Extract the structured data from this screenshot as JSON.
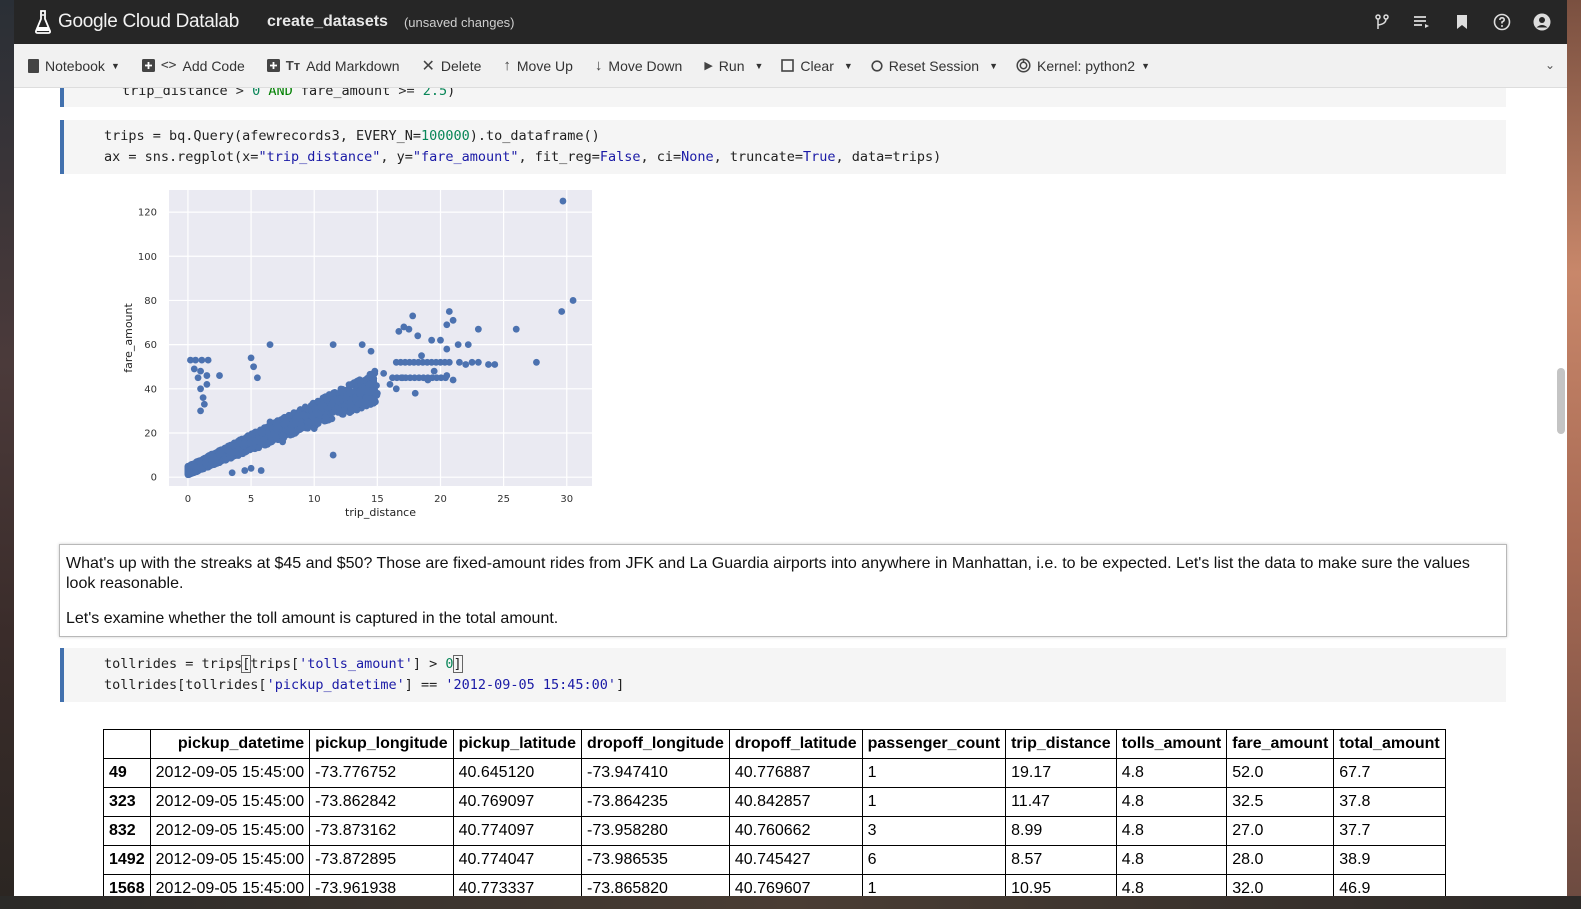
{
  "app": {
    "logo_text": "Google Cloud Datalab",
    "notebook_title": "create_datasets",
    "status": "(unsaved changes)"
  },
  "header_icons": [
    "branch-icon",
    "list-icon",
    "bookmark-icon",
    "help-icon",
    "account-icon"
  ],
  "toolbar": {
    "notebook": "Notebook",
    "add_code": "Add Code",
    "add_markdown": "Add Markdown",
    "delete": "Delete",
    "move_up": "Move Up",
    "move_down": "Move Down",
    "run": "Run",
    "clear": "Clear",
    "reset_session": "Reset Session",
    "kernel": "Kernel: python2"
  },
  "cells": {
    "top_partial_line": "trip_distance > 0 AND fare_amount >= 2.5)",
    "code1_line1": "trips = bq.Query(afewrecords3, EVERY_N=100000).to_dataframe()",
    "code1_line2": "ax = sns.regplot(x=\"trip_distance\", y=\"fare_amount\", fit_reg=False, ci=None, truncate=True, data=trips)",
    "markdown_p1": "What's up with the streaks at $45 and $50? Those are fixed-amount rides from JFK and La Guardia airports into anywhere in Manhattan, i.e. to be expected. Let's list the data to make sure the values look reasonable.",
    "markdown_p2": "Let's examine whether the toll amount is captured in the total amount.",
    "code2_line1": "tollrides = trips[trips['tolls_amount'] > 0]",
    "code2_line2": "tollrides[tollrides['pickup_datetime'] == '2012-09-05 15:45:00']"
  },
  "chart_data": {
    "type": "scatter",
    "xlabel": "trip_distance",
    "ylabel": "fare_amount",
    "xlim": [
      -1.5,
      32
    ],
    "ylim": [
      -4,
      130
    ],
    "xticks": [
      0,
      5,
      10,
      15,
      20,
      25,
      30
    ],
    "yticks": [
      0,
      20,
      40,
      60,
      80,
      100,
      120
    ],
    "grid": true,
    "color": "#4c72b0",
    "background": "#eaeaf2",
    "points": [
      [
        29.7,
        125
      ],
      [
        30.5,
        80
      ],
      [
        29.6,
        75
      ],
      [
        26.0,
        67
      ],
      [
        27.6,
        52
      ],
      [
        23.0,
        67
      ],
      [
        20.5,
        69
      ],
      [
        20.7,
        75
      ],
      [
        21.0,
        71
      ],
      [
        17.8,
        73
      ],
      [
        17.5,
        67
      ],
      [
        17.1,
        68
      ],
      [
        16.7,
        66
      ],
      [
        18.2,
        64
      ],
      [
        19.3,
        62
      ],
      [
        20.0,
        62
      ],
      [
        20.5,
        58
      ],
      [
        21.4,
        60
      ],
      [
        22.2,
        60
      ],
      [
        13.8,
        60
      ],
      [
        14.5,
        57
      ],
      [
        11.5,
        60
      ],
      [
        6.5,
        60
      ],
      [
        5.0,
        54
      ],
      [
        5.2,
        50
      ],
      [
        5.5,
        45
      ],
      [
        0.2,
        53
      ],
      [
        0.6,
        53
      ],
      [
        1.1,
        53
      ],
      [
        1.6,
        53
      ],
      [
        0.5,
        49
      ],
      [
        1.0,
        48
      ],
      [
        1.5,
        46
      ],
      [
        2.5,
        46
      ],
      [
        0.8,
        45
      ],
      [
        1.0,
        40
      ],
      [
        1.2,
        36
      ],
      [
        1.3,
        33
      ],
      [
        1.0,
        30
      ],
      [
        1.5,
        42
      ],
      [
        11.5,
        10
      ],
      [
        4.5,
        3
      ],
      [
        5.0,
        4
      ],
      [
        5.8,
        3
      ],
      [
        3.5,
        2
      ],
      [
        9.5,
        25
      ],
      [
        10.0,
        22
      ],
      [
        7.5,
        16
      ],
      [
        6.0,
        17
      ],
      [
        8.5,
        24
      ],
      [
        12.0,
        30
      ],
      [
        13.5,
        33
      ],
      [
        15.0,
        38
      ],
      [
        16.0,
        42
      ],
      [
        14.0,
        40
      ],
      [
        15.5,
        47
      ],
      [
        13.0,
        42
      ],
      [
        12.5,
        36
      ],
      [
        10.5,
        32
      ],
      [
        11.0,
        35
      ],
      [
        16.5,
        40
      ],
      [
        18.0,
        38
      ],
      [
        17.0,
        45
      ],
      [
        19.0,
        44
      ],
      [
        20.5,
        46
      ],
      [
        21.0,
        44
      ],
      [
        22.0,
        51
      ],
      [
        23.0,
        52
      ],
      [
        23.8,
        51
      ],
      [
        24.3,
        51
      ],
      [
        18.5,
        55
      ],
      [
        19.5,
        48
      ],
      [
        21.5,
        52
      ],
      [
        22.5,
        52
      ],
      [
        14.8,
        48
      ],
      [
        9.0,
        28
      ],
      [
        8.0,
        28
      ],
      [
        7.0,
        22
      ],
      [
        6.5,
        25
      ],
      [
        12.8,
        38
      ]
    ]
  },
  "table": {
    "columns": [
      "",
      "pickup_datetime",
      "pickup_longitude",
      "pickup_latitude",
      "dropoff_longitude",
      "dropoff_latitude",
      "passenger_count",
      "trip_distance",
      "tolls_amount",
      "fare_amount",
      "total_amount"
    ],
    "rows": [
      [
        "49",
        "2012-09-05 15:45:00",
        "-73.776752",
        "40.645120",
        "-73.947410",
        "40.776887",
        "1",
        "19.17",
        "4.8",
        "52.0",
        "67.7"
      ],
      [
        "323",
        "2012-09-05 15:45:00",
        "-73.862842",
        "40.769097",
        "-73.864235",
        "40.842857",
        "1",
        "11.47",
        "4.8",
        "32.5",
        "37.8"
      ],
      [
        "832",
        "2012-09-05 15:45:00",
        "-73.873162",
        "40.774097",
        "-73.958280",
        "40.760662",
        "3",
        "8.99",
        "4.8",
        "27.0",
        "37.7"
      ],
      [
        "1492",
        "2012-09-05 15:45:00",
        "-73.872895",
        "40.774047",
        "-73.986535",
        "40.745427",
        "6",
        "8.57",
        "4.8",
        "28.0",
        "38.9"
      ],
      [
        "1568",
        "2012-09-05 15:45:00",
        "-73.961938",
        "40.773337",
        "-73.865820",
        "40.769607",
        "1",
        "10.95",
        "4.8",
        "32.0",
        "46.9"
      ]
    ]
  }
}
